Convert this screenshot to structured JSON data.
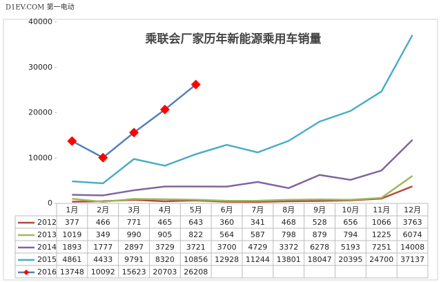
{
  "watermark": "D1EV.COM 第一电动",
  "chart_data": {
    "type": "line",
    "title": "乘联会厂家历年新能源乘用车销量",
    "categories": [
      "1月",
      "2月",
      "3月",
      "4月",
      "5月",
      "6月",
      "7月",
      "8月",
      "9月",
      "10月",
      "11月",
      "12月"
    ],
    "series": [
      {
        "name": "2012",
        "color": "#b5483f",
        "values": [
          377,
          466,
          771,
          465,
          643,
          360,
          341,
          468,
          528,
          656,
          1066,
          3763
        ]
      },
      {
        "name": "2013",
        "color": "#9bbb59",
        "values": [
          1019,
          349,
          990,
          905,
          822,
          564,
          587,
          798,
          879,
          794,
          1225,
          6074
        ]
      },
      {
        "name": "2014",
        "color": "#8064a2",
        "values": [
          1893,
          1777,
          2897,
          3729,
          3721,
          3700,
          4729,
          3372,
          6278,
          5193,
          7251,
          14008
        ]
      },
      {
        "name": "2015",
        "color": "#4bacc6",
        "values": [
          4861,
          4433,
          9791,
          8320,
          10856,
          12928,
          11244,
          13801,
          18047,
          20395,
          24700,
          37137
        ]
      },
      {
        "name": "2016",
        "color": "#4f81bd",
        "marker": "diamond",
        "marker_color": "#ff0000",
        "values": [
          13748,
          10092,
          15623,
          20703,
          26208,
          null,
          null,
          null,
          null,
          null,
          null,
          null
        ]
      }
    ],
    "ylim": [
      0,
      40000
    ],
    "yticks": [
      0,
      10000,
      20000,
      30000,
      40000
    ],
    "grid": false
  }
}
